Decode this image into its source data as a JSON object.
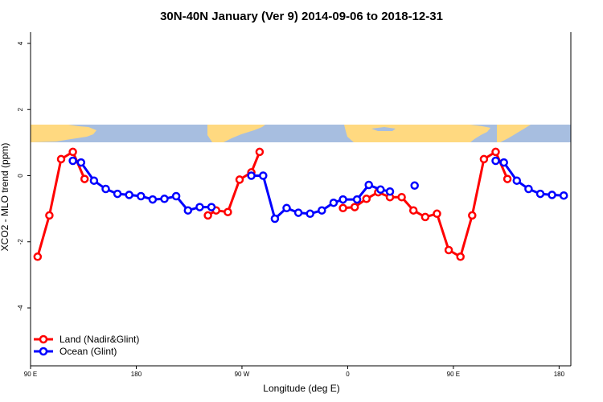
{
  "chart_data": {
    "type": "line",
    "title": "30N-40N January (Ver 9)   2014-09-06 to 2018-12-31",
    "xlabel": "Longitude (deg E)",
    "ylabel": "XCO2 - MLO trend (ppm)",
    "xlim": [
      90,
      550
    ],
    "ylim": [
      -5.5,
      4.2
    ],
    "x_ticks": [
      {
        "value": 90,
        "label": "90 E"
      },
      {
        "value": 180,
        "label": "180"
      },
      {
        "value": 270,
        "label": "90 W"
      },
      {
        "value": 360,
        "label": "0"
      },
      {
        "value": 450,
        "label": "90 E"
      },
      {
        "value": 540,
        "label": "180"
      }
    ],
    "y_ticks": [
      {
        "value": 4,
        "label": "4"
      },
      {
        "value": 2,
        "label": "2"
      },
      {
        "value": 0,
        "label": "0"
      },
      {
        "value": -2,
        "label": "-2"
      },
      {
        "value": -4,
        "label": "-4"
      }
    ],
    "map_band": {
      "y_top": 1.55,
      "y_bottom": 1.0,
      "land_color": "#FFD980",
      "ocean_color": "#A7BEE0"
    },
    "series": [
      {
        "name": "Land (Nadir&Glint)",
        "color": "#FF0000",
        "segments": [
          [
            [
              96,
              -2.45
            ],
            [
              106,
              -1.2
            ],
            [
              116,
              0.5
            ],
            [
              126,
              0.72
            ],
            [
              136,
              -0.1
            ]
          ],
          [
            [
              241,
              -1.2
            ],
            [
              248,
              -1.05
            ],
            [
              258,
              -1.1
            ],
            [
              268,
              -0.12
            ],
            [
              278,
              0.1
            ],
            [
              285,
              0.72
            ]
          ],
          [
            [
              356,
              -0.98
            ],
            [
              366,
              -0.95
            ],
            [
              376,
              -0.7
            ],
            [
              386,
              -0.5
            ],
            [
              396,
              -0.65
            ],
            [
              406,
              -0.65
            ],
            [
              416,
              -1.05
            ],
            [
              426,
              -1.25
            ],
            [
              436,
              -1.15
            ],
            [
              446,
              -2.25
            ],
            [
              456,
              -2.45
            ],
            [
              466,
              -1.2
            ],
            [
              476,
              0.5
            ],
            [
              486,
              0.72
            ],
            [
              496,
              -0.1
            ]
          ]
        ]
      },
      {
        "name": "Ocean (Glint)",
        "color": "#0000FF",
        "segments": [
          [
            [
              126,
              0.45
            ],
            [
              133,
              0.4
            ],
            [
              144,
              -0.15
            ],
            [
              154,
              -0.4
            ],
            [
              164,
              -0.55
            ],
            [
              174,
              -0.58
            ],
            [
              184,
              -0.62
            ],
            [
              194,
              -0.72
            ],
            [
              204,
              -0.7
            ],
            [
              214,
              -0.62
            ],
            [
              224,
              -1.05
            ],
            [
              234,
              -0.95
            ],
            [
              244,
              -0.95
            ]
          ],
          [
            [
              278,
              0.0
            ],
            [
              288,
              0.0
            ],
            [
              298,
              -1.3
            ],
            [
              308,
              -0.98
            ],
            [
              318,
              -1.12
            ],
            [
              328,
              -1.15
            ],
            [
              338,
              -1.05
            ],
            [
              348,
              -0.82
            ],
            [
              356,
              -0.72
            ],
            [
              368,
              -0.72
            ],
            [
              378,
              -0.28
            ],
            [
              388,
              -0.42
            ],
            [
              396,
              -0.48
            ]
          ],
          [
            [
              417,
              -0.3
            ]
          ],
          [
            [
              486,
              0.45
            ],
            [
              493,
              0.4
            ],
            [
              504,
              -0.15
            ],
            [
              514,
              -0.4
            ],
            [
              524,
              -0.55
            ],
            [
              534,
              -0.58
            ],
            [
              544,
              -0.6
            ]
          ]
        ]
      }
    ],
    "legend": {
      "position": "bottom-left"
    }
  }
}
